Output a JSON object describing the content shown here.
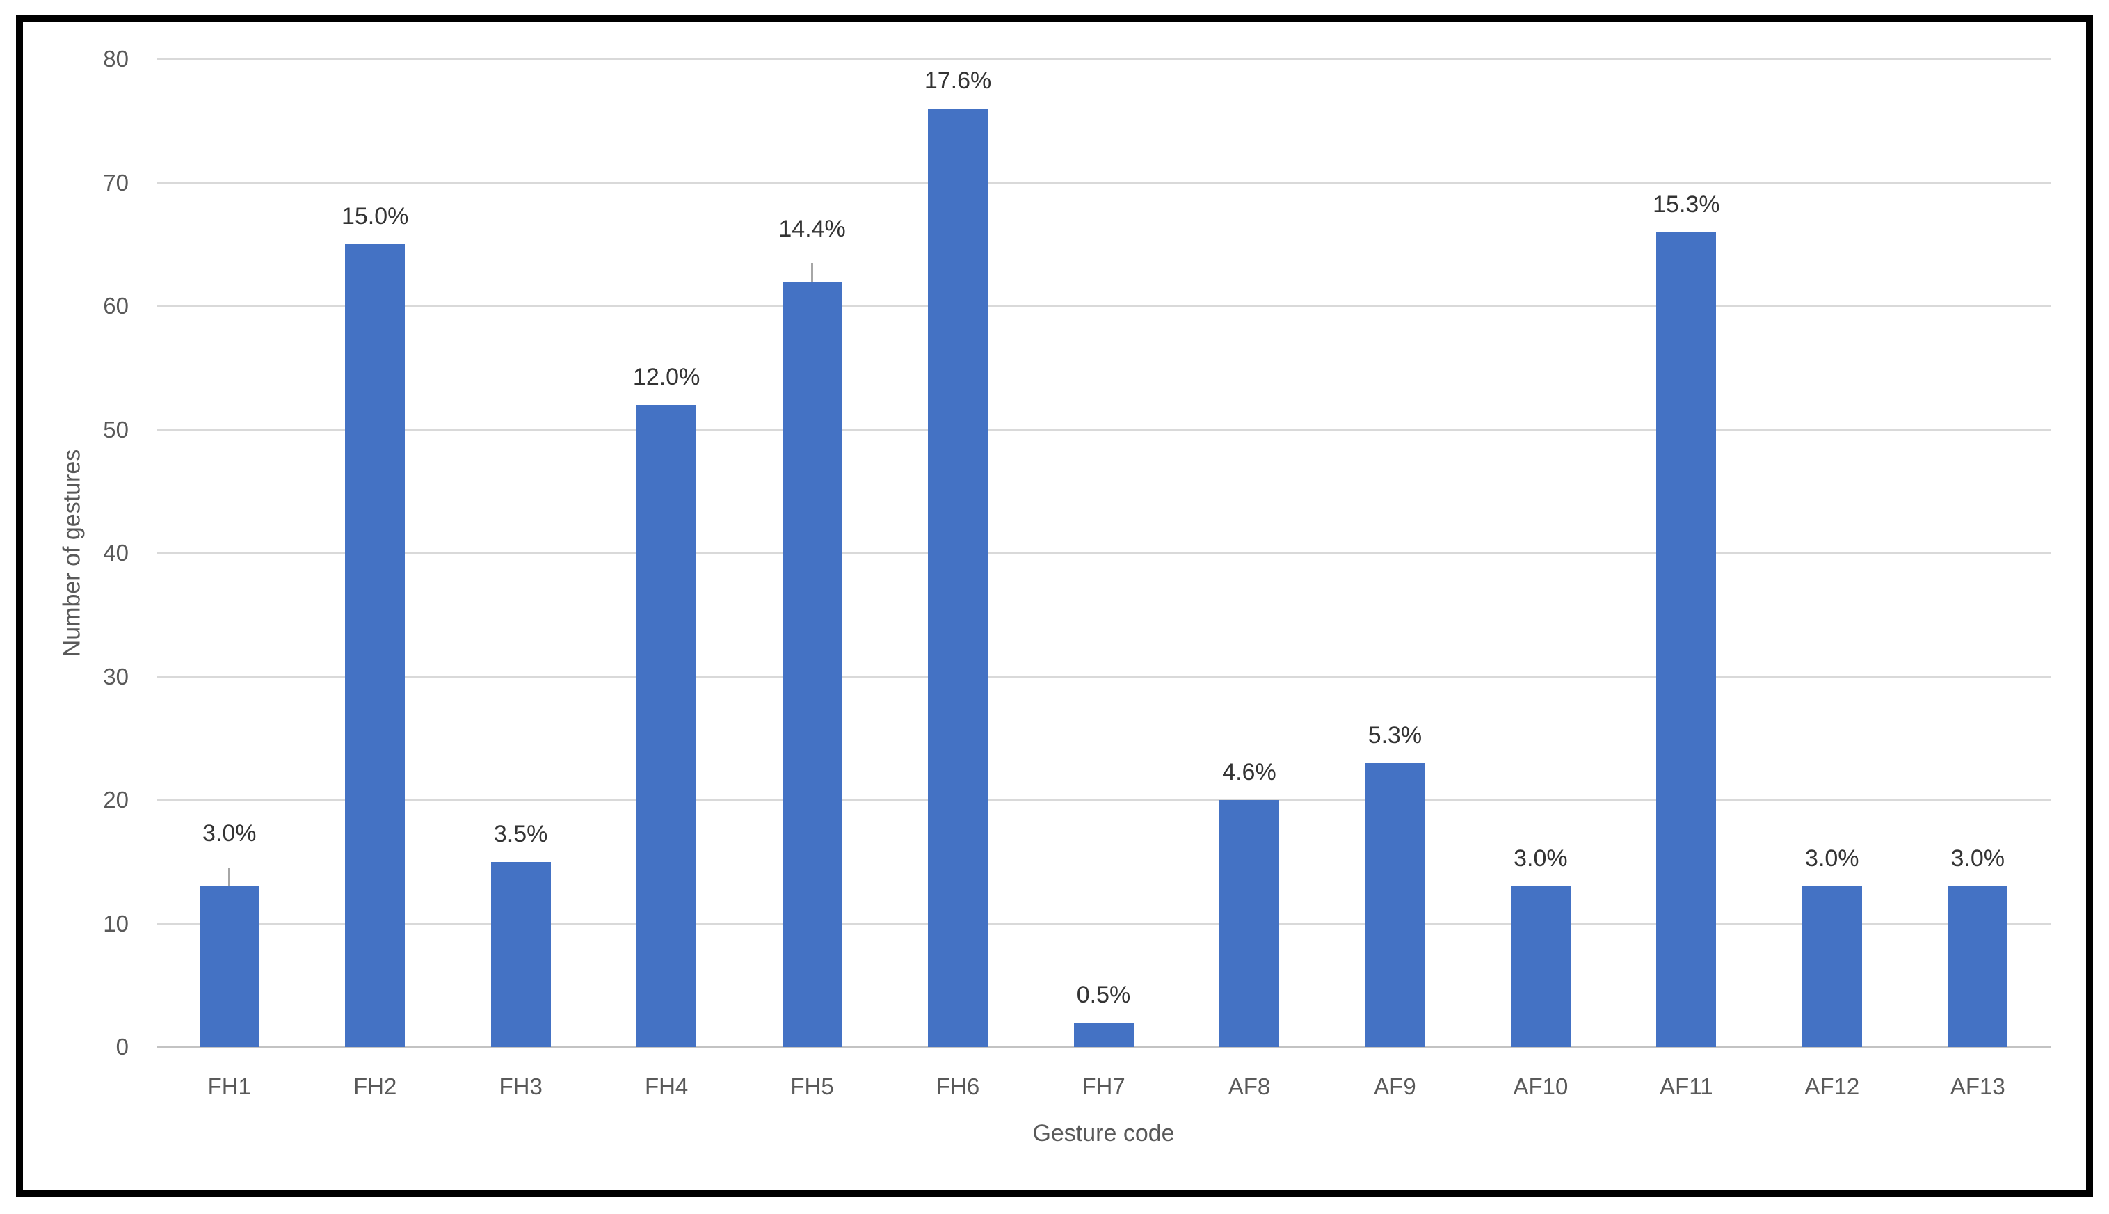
{
  "chart_data": {
    "type": "bar",
    "xlabel": "Gesture code",
    "ylabel": "Number of gestures",
    "categories": [
      "FH1",
      "FH2",
      "FH3",
      "FH4",
      "FH5",
      "FH6",
      "FH7",
      "AF8",
      "AF9",
      "AF10",
      "AF11",
      "AF12",
      "AF13"
    ],
    "values": [
      13,
      65,
      15,
      52,
      62,
      76,
      2,
      20,
      23,
      13,
      66,
      13,
      13
    ],
    "bar_labels": [
      "3.0%",
      "15.0%",
      "3.5%",
      "12.0%",
      "14.4%",
      "17.6%",
      "0.5%",
      "4.6%",
      "5.3%",
      "3.0%",
      "15.3%",
      "3.0%",
      "3.0%"
    ],
    "labels_with_leader_lines": [
      "FH1",
      "FH5"
    ],
    "ylim": [
      0,
      80
    ],
    "yticks": [
      0,
      10,
      20,
      30,
      40,
      50,
      60,
      70,
      80
    ],
    "grid": true,
    "legend": "none",
    "colors": {
      "bar": "#4472c4",
      "gridline": "#d9d9d9",
      "axis_text": "#595959",
      "data_label_text": "#333333",
      "leader_line": "#a6a6a6",
      "frame_border": "#000000",
      "background": "#ffffff"
    }
  }
}
